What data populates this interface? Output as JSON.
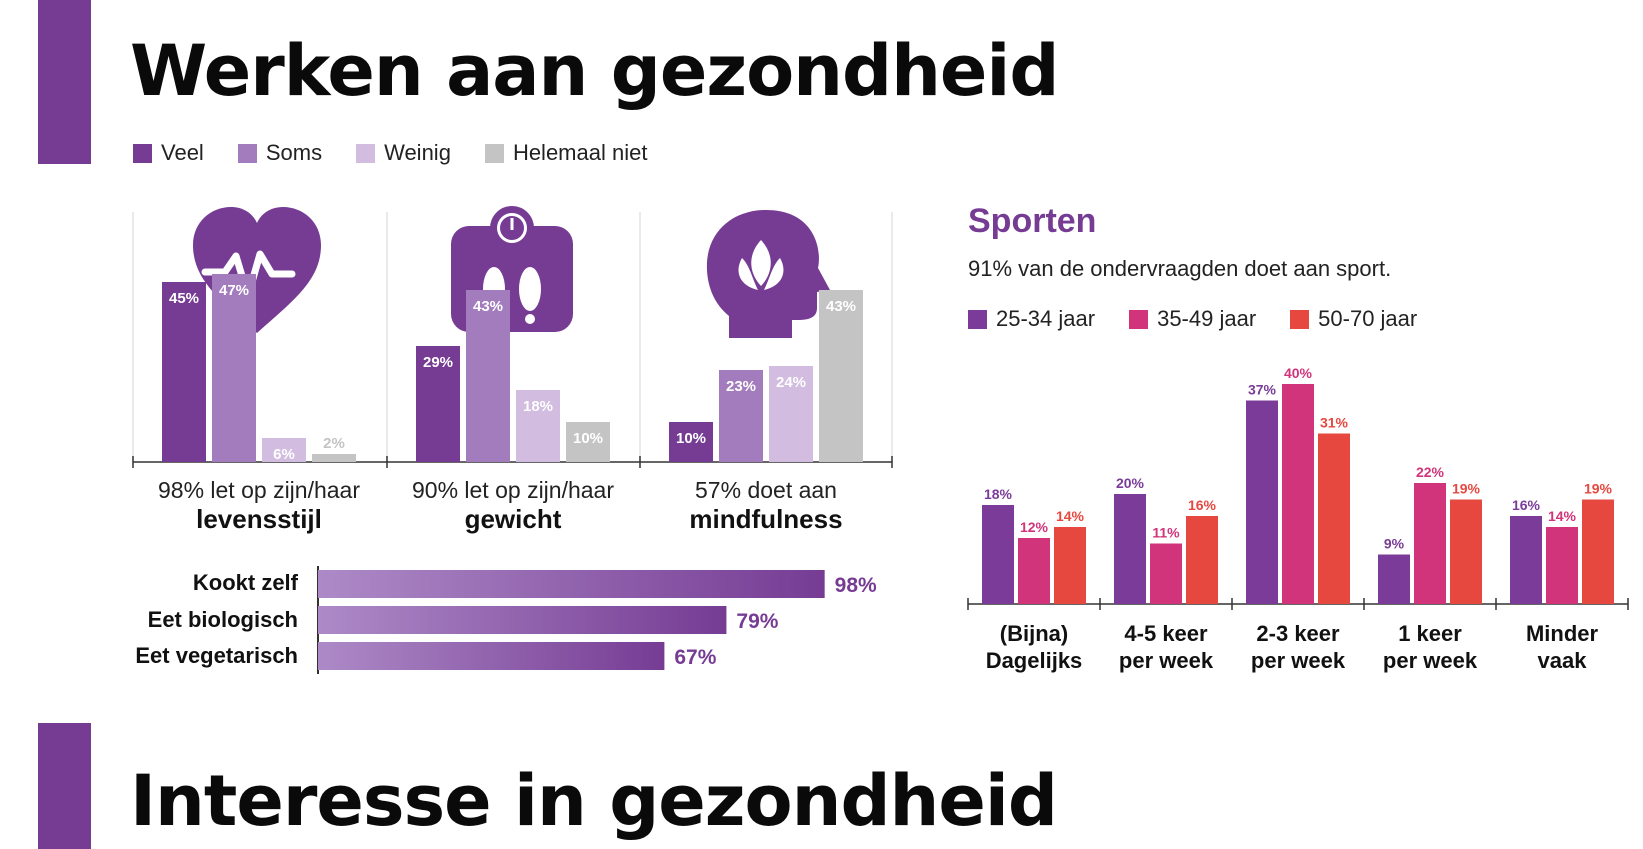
{
  "section1": {
    "title": "Werken aan gezondheid"
  },
  "section2": {
    "title": "Interesse in gezondheid"
  },
  "colors": {
    "accent": "#763c94",
    "veel": "#763c94",
    "soms": "#a27cbd",
    "weinig": "#d2bcdf",
    "helemaal_niet": "#c4c4c4",
    "age_25_34": "#7b3c99",
    "age_35_49": "#d1347a",
    "age_50_70": "#e6483f"
  },
  "legend": [
    {
      "label": "Veel",
      "color": "#763c94"
    },
    {
      "label": "Soms",
      "color": "#a27cbd"
    },
    {
      "label": "Weinig",
      "color": "#d2bcdf"
    },
    {
      "label": "Helemaal niet",
      "color": "#c4c4c4"
    }
  ],
  "panels": [
    {
      "icon": "heartbeat-icon",
      "line1": "98% let op zijn/haar",
      "line2": "levensstijl"
    },
    {
      "icon": "weight-scale-icon",
      "line1": "90% let op zijn/haar",
      "line2": "gewicht"
    },
    {
      "icon": "mindfulness-head-icon",
      "line1": "57% doet aan",
      "line2": "mindfulness"
    }
  ],
  "sport": {
    "title": "Sporten",
    "subtitle": "91% van de ondervraagden doet aan sport.",
    "legend": [
      {
        "label": "25-34 jaar",
        "color": "#7b3c99"
      },
      {
        "label": "35-49 jaar",
        "color": "#d1347a"
      },
      {
        "label": "50-70 jaar",
        "color": "#e6483f"
      }
    ],
    "categories": [
      [
        "(Bijna)",
        "Dagelijks"
      ],
      [
        "4-5 keer",
        "per week"
      ],
      [
        "2-3 keer",
        "per week"
      ],
      [
        "1 keer",
        "per week"
      ],
      [
        "Minder",
        "vaak"
      ]
    ]
  },
  "chart_data": [
    {
      "type": "bar",
      "categories": [
        "Veel",
        "Soms",
        "Weinig",
        "Helemaal niet"
      ],
      "series": [
        {
          "name": "levensstijl",
          "values": [
            45,
            47,
            6,
            2
          ]
        },
        {
          "name": "gewicht",
          "values": [
            29,
            43,
            18,
            10
          ]
        },
        {
          "name": "mindfulness",
          "values": [
            10,
            23,
            24,
            43
          ]
        }
      ],
      "value_suffix": "%",
      "ylim": [
        0,
        50
      ]
    },
    {
      "type": "bar",
      "orientation": "horizontal",
      "categories": [
        "Kookt zelf",
        "Eet biologisch",
        "Eet vegetarisch"
      ],
      "values": [
        98,
        79,
        67
      ],
      "value_suffix": "%",
      "xlim": [
        0,
        100
      ]
    },
    {
      "type": "bar",
      "title": "Sporten",
      "categories": [
        "(Bijna) Dagelijks",
        "4-5 keer per week",
        "2-3 keer per week",
        "1 keer per week",
        "Minder vaak"
      ],
      "series": [
        {
          "name": "25-34 jaar",
          "values": [
            18,
            20,
            37,
            9,
            16
          ]
        },
        {
          "name": "35-49 jaar",
          "values": [
            12,
            11,
            40,
            22,
            14
          ]
        },
        {
          "name": "50-70 jaar",
          "values": [
            14,
            16,
            31,
            19,
            19
          ]
        }
      ],
      "value_suffix": "%",
      "ylim": [
        0,
        40
      ]
    }
  ]
}
